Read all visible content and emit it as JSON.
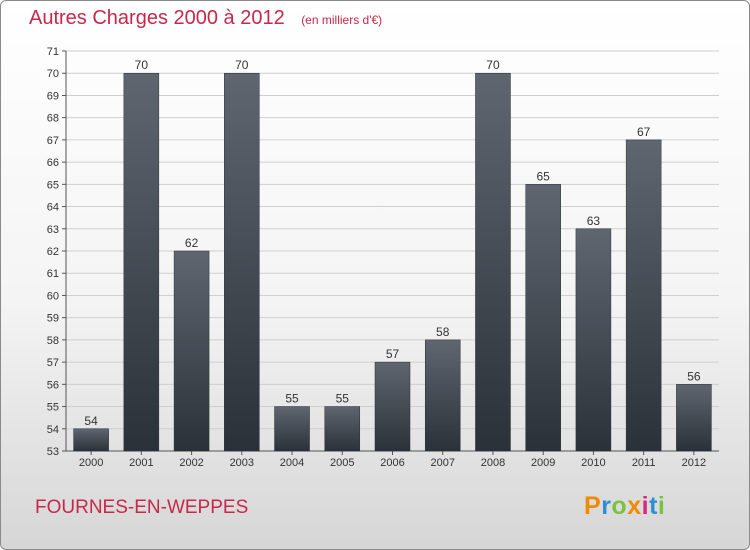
{
  "header": {
    "title": "Autres Charges 2000 à 2012",
    "unit_note": "(en milliers d'€)"
  },
  "footer": {
    "commune": "FOURNES-EN-WEPPES",
    "logo_text": "Proxiti",
    "logo_colors": [
      "#f08a00",
      "#2e8fd8",
      "#7cc242",
      "#f08a00",
      "#d42b7c",
      "#2e8fd8",
      "#7cc242"
    ]
  },
  "colors": {
    "title": "#c6284a",
    "bar_top": "#5f6670",
    "bar_bottom": "#2b3138",
    "grid": "#cfcfcf"
  },
  "chart_data": {
    "type": "bar",
    "title": "Autres Charges 2000 à 2012",
    "subtitle": "(en milliers d'€)",
    "categories": [
      "2000",
      "2001",
      "2002",
      "2003",
      "2004",
      "2005",
      "2006",
      "2007",
      "2008",
      "2009",
      "2010",
      "2011",
      "2012"
    ],
    "values": [
      54,
      70,
      62,
      70,
      55,
      55,
      57,
      58,
      70,
      65,
      63,
      67,
      56
    ],
    "ylim": [
      53,
      71
    ],
    "ytick_step": 1,
    "grid": true,
    "data_labels": true,
    "xlabel": "",
    "ylabel": ""
  }
}
